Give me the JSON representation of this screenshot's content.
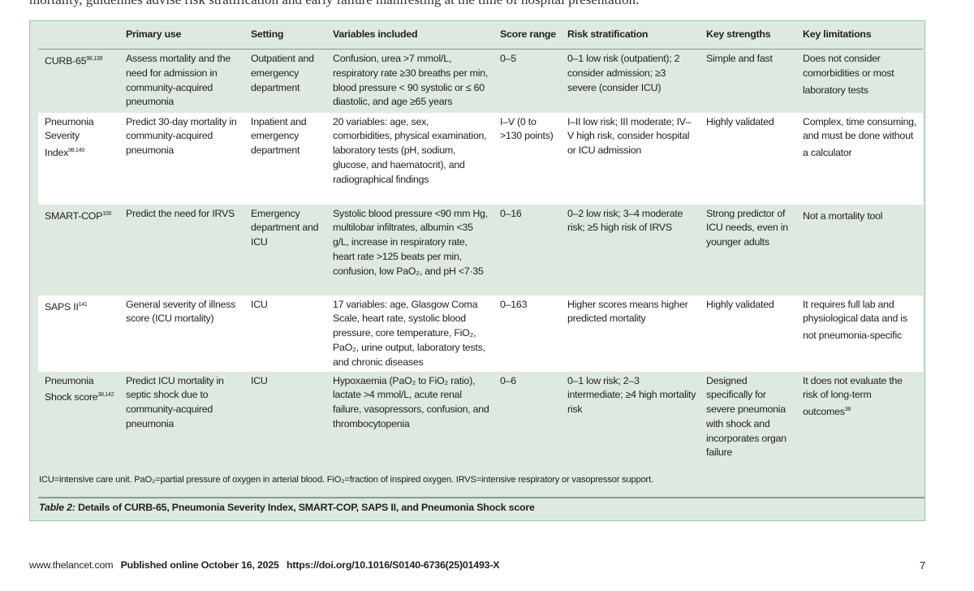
{
  "top_text": "mortality, guidelines advise risk stratification and early    failure manifesting at the time of hospital presentation.",
  "table": {
    "headers": [
      "",
      "Primary use",
      "Setting",
      "Variables included",
      "Score range",
      "Risk stratification",
      "Key strengths",
      "Key limitations"
    ],
    "rows": [
      {
        "name": "CURB-65",
        "ref": "98,139",
        "primary_use": "Assess mortality and the need for admission in community-acquired pneumonia",
        "setting": "Outpatient and emergency department",
        "variables": "Confusion, urea >7 mmol/L, respiratory rate ≥30 breaths per min, blood pressure < 90 systolic or ≤ 60 diastolic, and age ≥65 years",
        "score_range": "0–5",
        "risk": "0–1 low risk (outpatient); 2 consider admission; ≥3 severe (consider ICU)",
        "strengths": "Simple and fast",
        "limitations": "Does not consider comorbidities or most laboratory tests",
        "limitations_ref": ""
      },
      {
        "name": "Pneumonia Severity Index",
        "ref": "98,140",
        "primary_use": "Predict 30-day mortality in community-acquired pneumonia",
        "setting": "Inpatient and emergency department",
        "variables": "20 variables: age, sex, comorbidities, physical examination, laboratory tests (pH, sodium, glucose, and haematocrit), and radiographical findings",
        "score_range": "I–V (0 to >130 points)",
        "risk": "I–II low risk; III moderate; IV–V high risk, consider hospital or ICU admission",
        "strengths": "Highly validated",
        "limitations": "Complex, time consuming, and must be done without a calculator",
        "limitations_ref": ""
      },
      {
        "name": "SMART-COP",
        "ref": "100",
        "primary_use": "Predict the need for IRVS",
        "setting": "Emergency department and ICU",
        "variables": "Systolic blood pressure <90 mm Hg, multilobar infiltrates, albumin <35 g/L, increase in respiratory rate, heart rate >125 beats per min, confusion, low PaO₂, and pH <7·35",
        "score_range": "0–16",
        "risk": "0–2 low risk; 3–4 moderate risk; ≥5 high risk of IRVS",
        "strengths": "Strong predictor of ICU needs, even in younger adults",
        "limitations": "Not a mortality tool",
        "limitations_ref": ""
      },
      {
        "name": "SAPS II",
        "ref": "141",
        "primary_use": "General severity of illness score (ICU mortality)",
        "setting": "ICU",
        "variables": "17 variables: age, Glasgow Coma Scale, heart rate, systolic blood pressure, core temperature, FiO₂, PaO₂, urine output, laboratory tests, and chronic diseases",
        "score_range": "0–163",
        "risk": "Higher scores means higher predicted mortality",
        "strengths": "Highly validated",
        "limitations": "It requires full lab and physiological data and is not pneumonia-specific",
        "limitations_ref": ""
      },
      {
        "name": "Pneumonia Shock score",
        "ref": "38,142",
        "primary_use": "Predict ICU mortality in septic shock due to community-acquired pneumonia",
        "setting": "ICU",
        "variables": "Hypoxaemia (PaO₂ to FiO₂ ratio), lactate >4 mmol/L, acute renal failure, vasopressors, confusion, and thrombocytopenia",
        "score_range": "0–6",
        "risk": "0–1 low risk; 2–3 intermediate; ≥4 high mortality risk",
        "strengths": "Designed specifically for severe pneumonia with shock and incorporates organ failure",
        "limitations": "It does not evaluate the risk of long-term outcomes",
        "limitations_ref": "38"
      }
    ],
    "footnote": "ICU=intensive care unit. PaO₂=partial pressure of oxygen in arterial blood. FiO₂=fraction of inspired oxygen. IRVS=intensive respiratory or vasopressor support.",
    "caption_label": "Table 2:",
    "caption_text": " Details of CURB-65, Pneumonia Severity Index, SMART-COP, SAPS II, and Pneumonia Shock score"
  },
  "page_footer": {
    "site": "www.thelancet.com",
    "published": "Published online October 16, 2025",
    "doi": "https://doi.org/10.1016/S0140-6736(25)01493-X",
    "page_number": "7"
  },
  "colors": {
    "table_bg": "#deeadf",
    "border": "#9cc3a6"
  }
}
